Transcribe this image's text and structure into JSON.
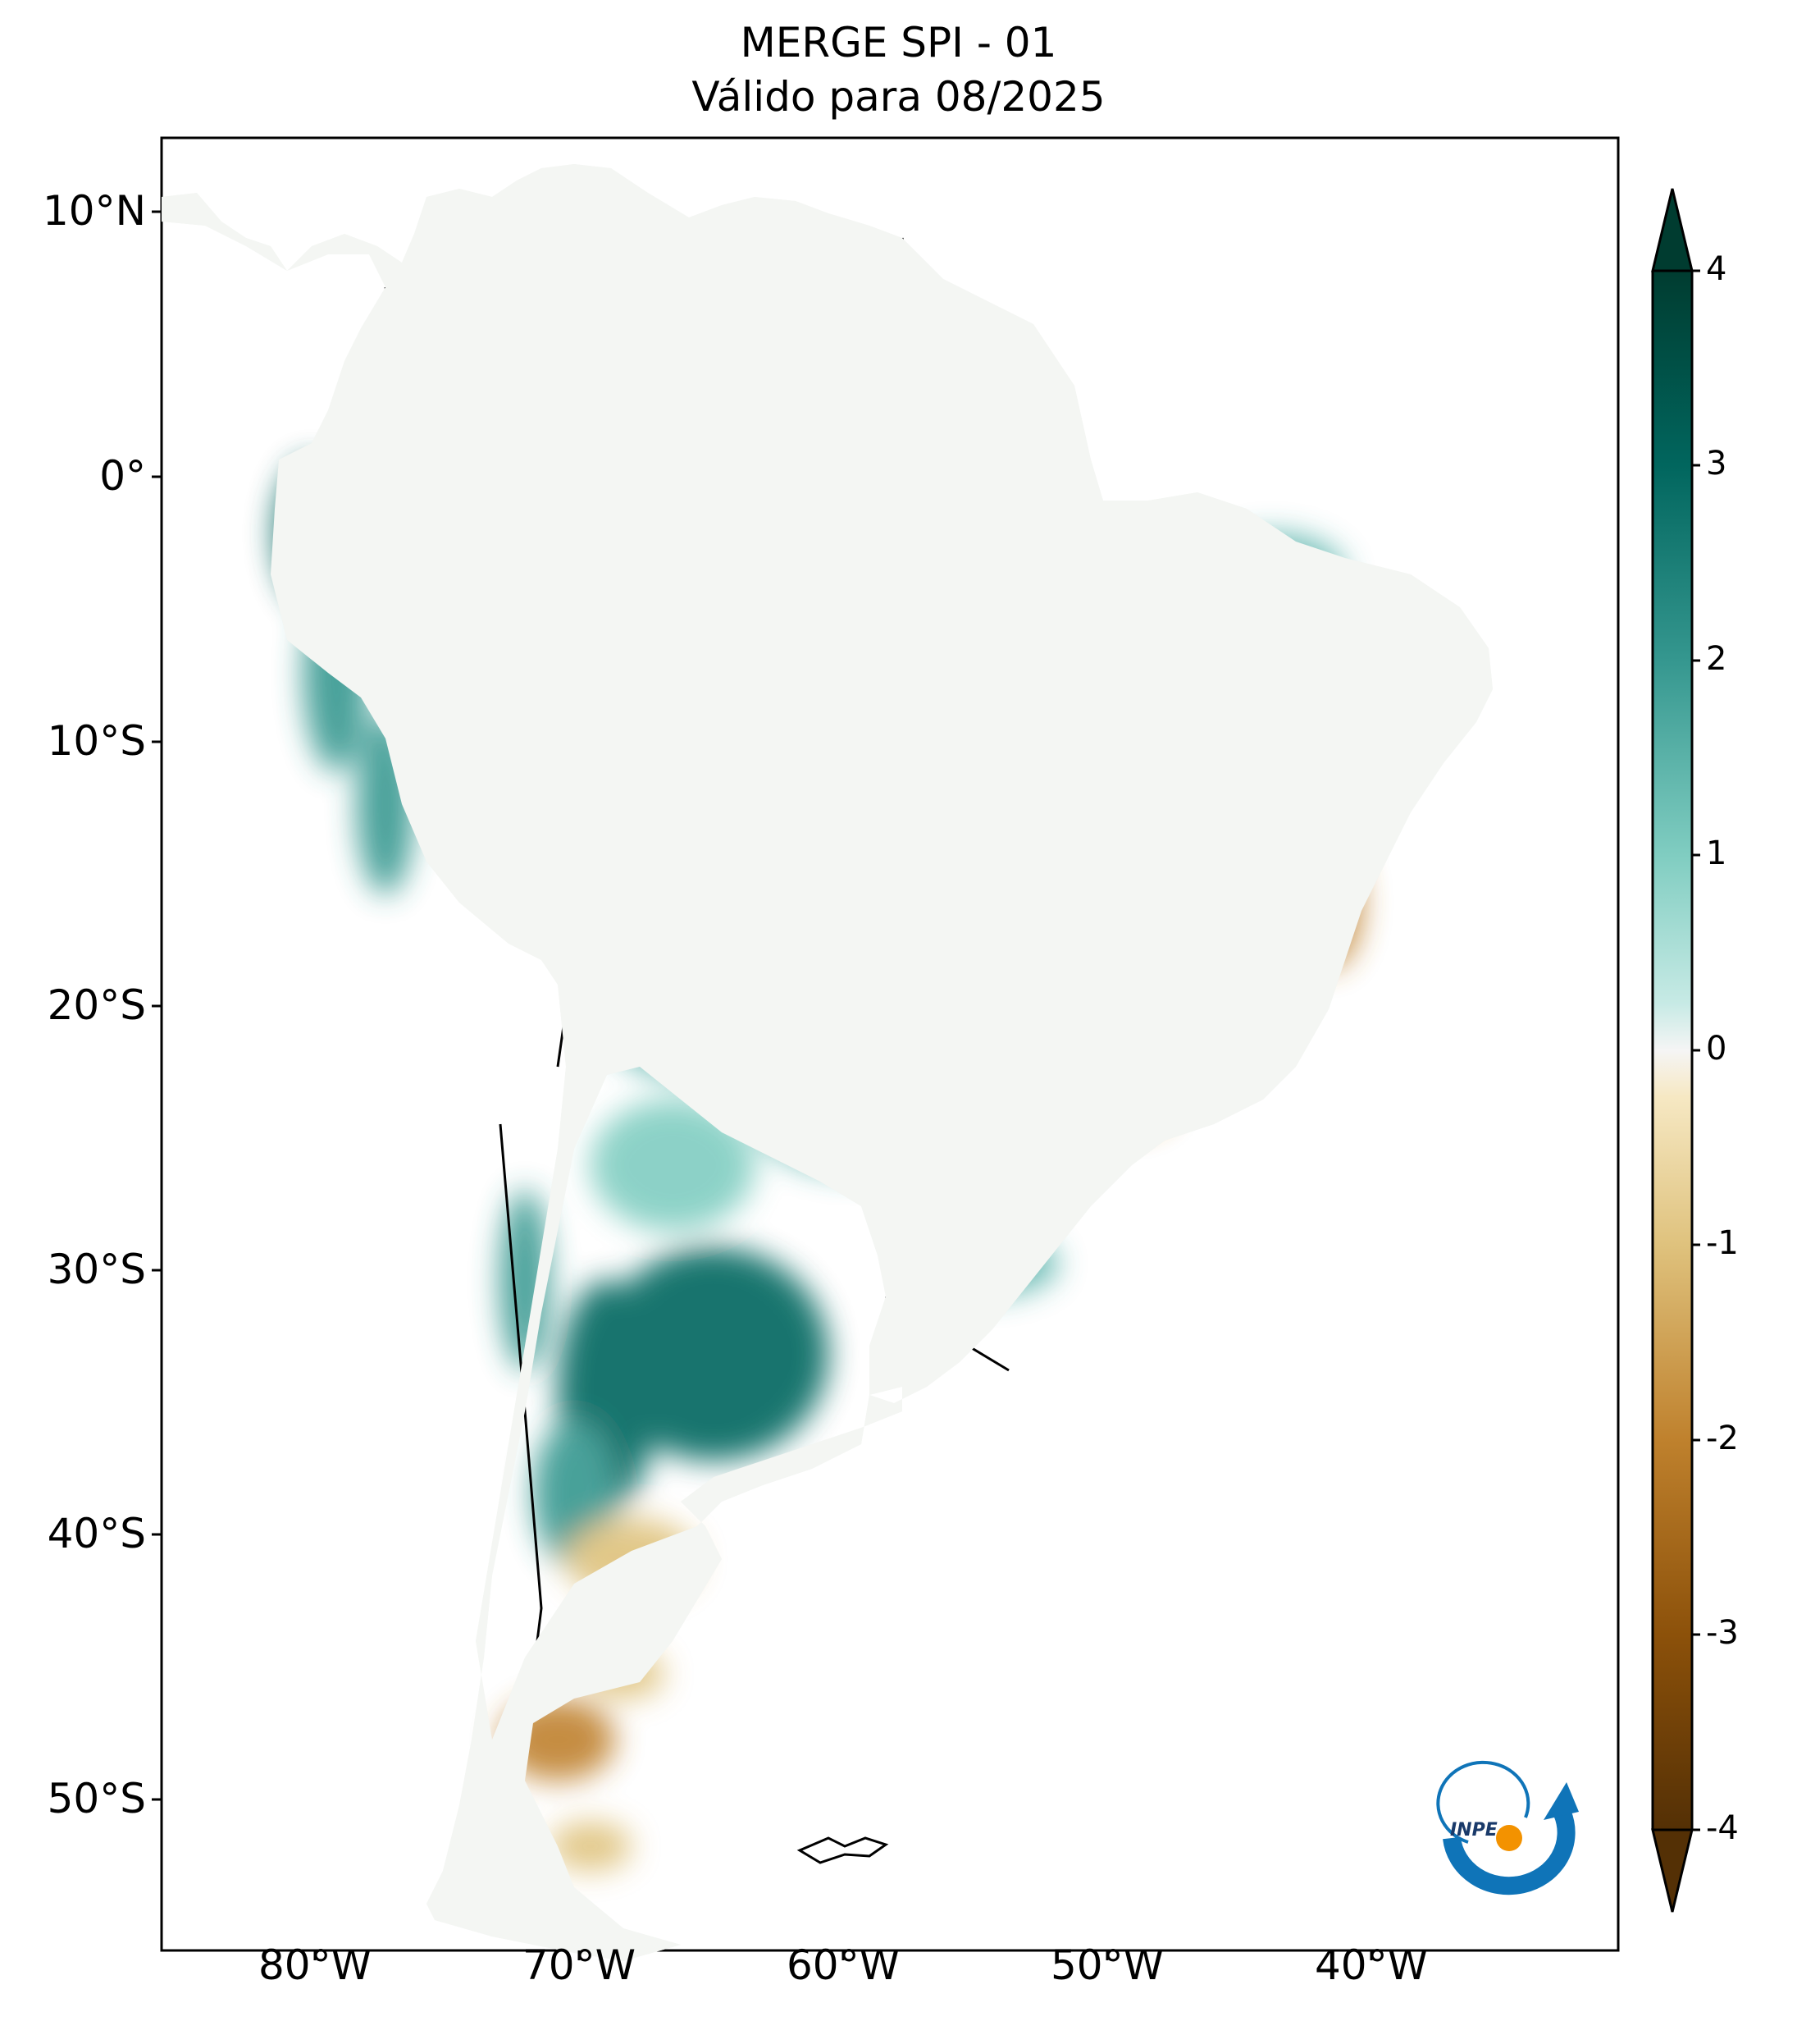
{
  "title": {
    "line1": "MERGE   SPI - 01",
    "line2": "Válido para 08/2025"
  },
  "map": {
    "region": "South America",
    "variable": "SPI-01",
    "latitude_ticks": [
      "10°N",
      "0°",
      "10°S",
      "20°S",
      "30°S",
      "40°S",
      "50°S"
    ],
    "longitude_ticks": [
      "80°W",
      "70°W",
      "60°W",
      "50°W",
      "40°W"
    ],
    "colors": {
      "very_wet": "#003c30",
      "wet": "#01665e",
      "moist": "#80cdc1",
      "neutral": "#f5f5f5",
      "dry": "#dfc27d",
      "very_dry": "#8c510a",
      "extreme_dry": "#543005",
      "borders": "#000000"
    }
  },
  "colorbar": {
    "ticks": [
      "4",
      "3",
      "2",
      "1",
      "0",
      "-1",
      "-2",
      "-3",
      "-4"
    ],
    "extend": "both"
  },
  "logo": {
    "text": "INPE",
    "colors": {
      "arrow": "#0f74b8",
      "dot": "#f39200"
    }
  }
}
